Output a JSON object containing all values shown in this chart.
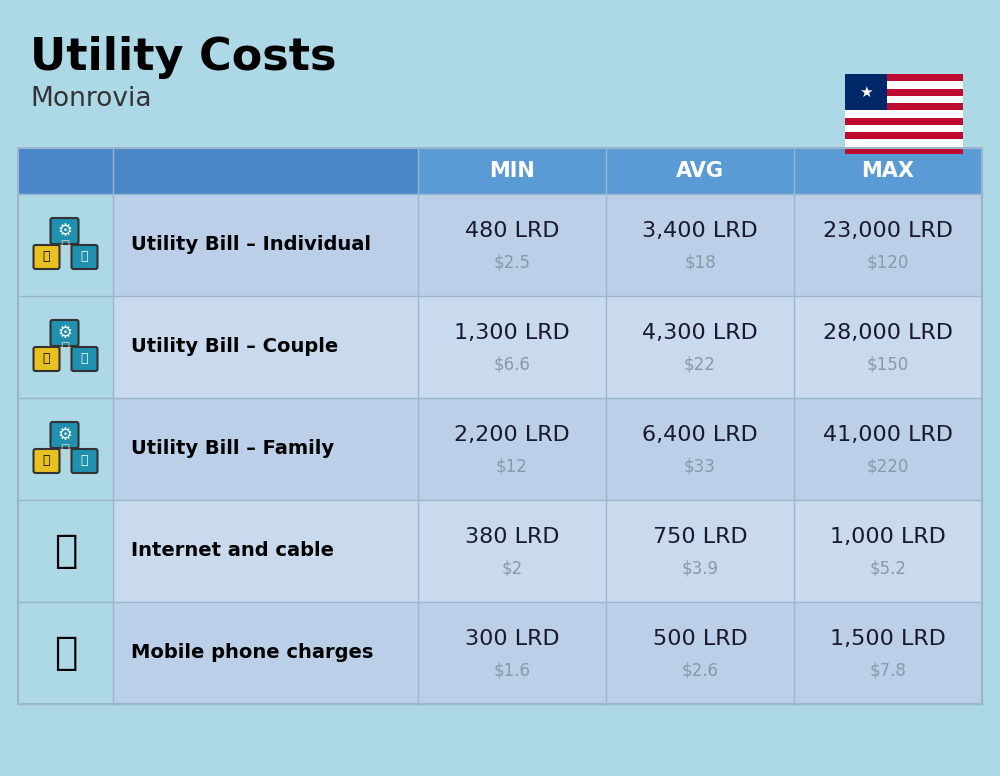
{
  "title": "Utility Costs",
  "subtitle": "Monrovia",
  "background_color": "#ADD8E6",
  "header_bg_color_left": "#4A86C8",
  "header_bg_color_right": "#5B9BD5",
  "header_text_color": "#FFFFFF",
  "row_bg_colors": [
    "#BCCFE8",
    "#C9D9EE"
  ],
  "col_header_labels": [
    "MIN",
    "AVG",
    "MAX"
  ],
  "rows": [
    {
      "label": "Utility Bill – Individual",
      "min_lrd": "480 LRD",
      "min_usd": "$2.5",
      "avg_lrd": "3,400 LRD",
      "avg_usd": "$18",
      "max_lrd": "23,000 LRD",
      "max_usd": "$120"
    },
    {
      "label": "Utility Bill – Couple",
      "min_lrd": "1,300 LRD",
      "min_usd": "$6.6",
      "avg_lrd": "4,300 LRD",
      "avg_usd": "$22",
      "max_lrd": "28,000 LRD",
      "max_usd": "$150"
    },
    {
      "label": "Utility Bill – Family",
      "min_lrd": "2,200 LRD",
      "min_usd": "$12",
      "avg_lrd": "6,400 LRD",
      "avg_usd": "$33",
      "max_lrd": "41,000 LRD",
      "max_usd": "$220"
    },
    {
      "label": "Internet and cable",
      "min_lrd": "380 LRD",
      "min_usd": "$2",
      "avg_lrd": "750 LRD",
      "avg_usd": "$3.9",
      "max_lrd": "1,000 LRD",
      "max_usd": "$5.2"
    },
    {
      "label": "Mobile phone charges",
      "min_lrd": "300 LRD",
      "min_usd": "$1.6",
      "avg_lrd": "500 LRD",
      "avg_usd": "$2.6",
      "max_lrd": "1,500 LRD",
      "max_usd": "$7.8"
    }
  ],
  "title_fontsize": 32,
  "subtitle_fontsize": 19,
  "header_fontsize": 15,
  "label_fontsize": 14,
  "value_fontsize": 16,
  "usd_fontsize": 12,
  "usd_color": "#8899AA",
  "label_color": "#000000",
  "value_color": "#1a1a2e",
  "divider_color": "#9BB5CC",
  "flag_stripe_colors": [
    "#BF0A30",
    "#FFFFFF",
    "#BF0A30",
    "#FFFFFF",
    "#BF0A30",
    "#FFFFFF",
    "#BF0A30",
    "#FFFFFF",
    "#BF0A30",
    "#FFFFFF",
    "#BF0A30"
  ],
  "flag_canton_color": "#002868"
}
